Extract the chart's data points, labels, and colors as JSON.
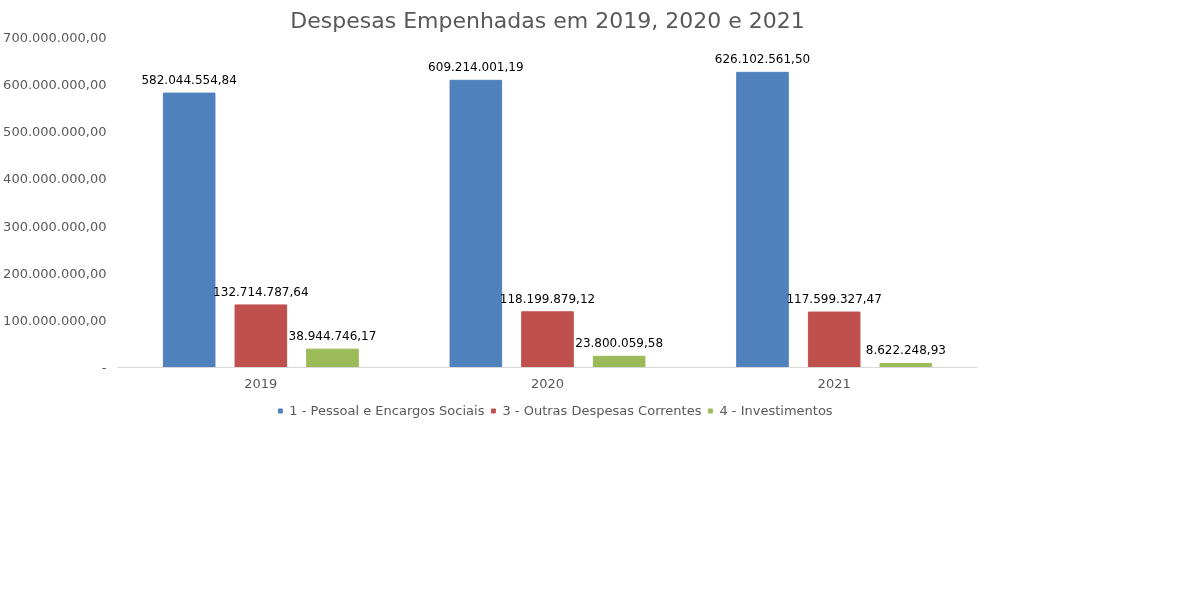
{
  "chart_data": {
    "type": "bar",
    "title": "Despesas Empenhadas em 2019, 2020 e 2021",
    "categories": [
      "2019",
      "2020",
      "2021"
    ],
    "series": [
      {
        "name": "1 - Pessoal e Encargos Sociais",
        "color": "#4f81bd",
        "values": [
          582044554.84,
          609214001.19,
          626102561.5
        ],
        "value_labels": [
          "582.044.554,84",
          "609.214.001,19",
          "626.102.561,50"
        ]
      },
      {
        "name": "3 - Outras Despesas Correntes",
        "color": "#c0504d",
        "values": [
          132714787.64,
          118199879.12,
          117599327.47
        ],
        "value_labels": [
          "132.714.787,64",
          "118.199.879,12",
          "117.599.327,47"
        ]
      },
      {
        "name": "4 - Investimentos",
        "color": "#9bbb59",
        "values": [
          38944746.17,
          23800059.58,
          8622248.93
        ],
        "value_labels": [
          "38.944.746,17",
          "23.800.059,58",
          "8.622.248,93"
        ]
      }
    ],
    "ylim": [
      0,
      700000000
    ],
    "yticks": [
      {
        "value": 0,
        "label": "-"
      },
      {
        "value": 100000000,
        "label": "100.000.000,00"
      },
      {
        "value": 200000000,
        "label": "200.000.000,00"
      },
      {
        "value": 300000000,
        "label": "300.000.000,00"
      },
      {
        "value": 400000000,
        "label": "400.000.000,00"
      },
      {
        "value": 500000000,
        "label": "500.000.000,00"
      },
      {
        "value": 600000000,
        "label": "600.000.000,00"
      },
      {
        "value": 700000000,
        "label": "700.000.000,00"
      }
    ],
    "grid": false,
    "legend": "bottom"
  }
}
